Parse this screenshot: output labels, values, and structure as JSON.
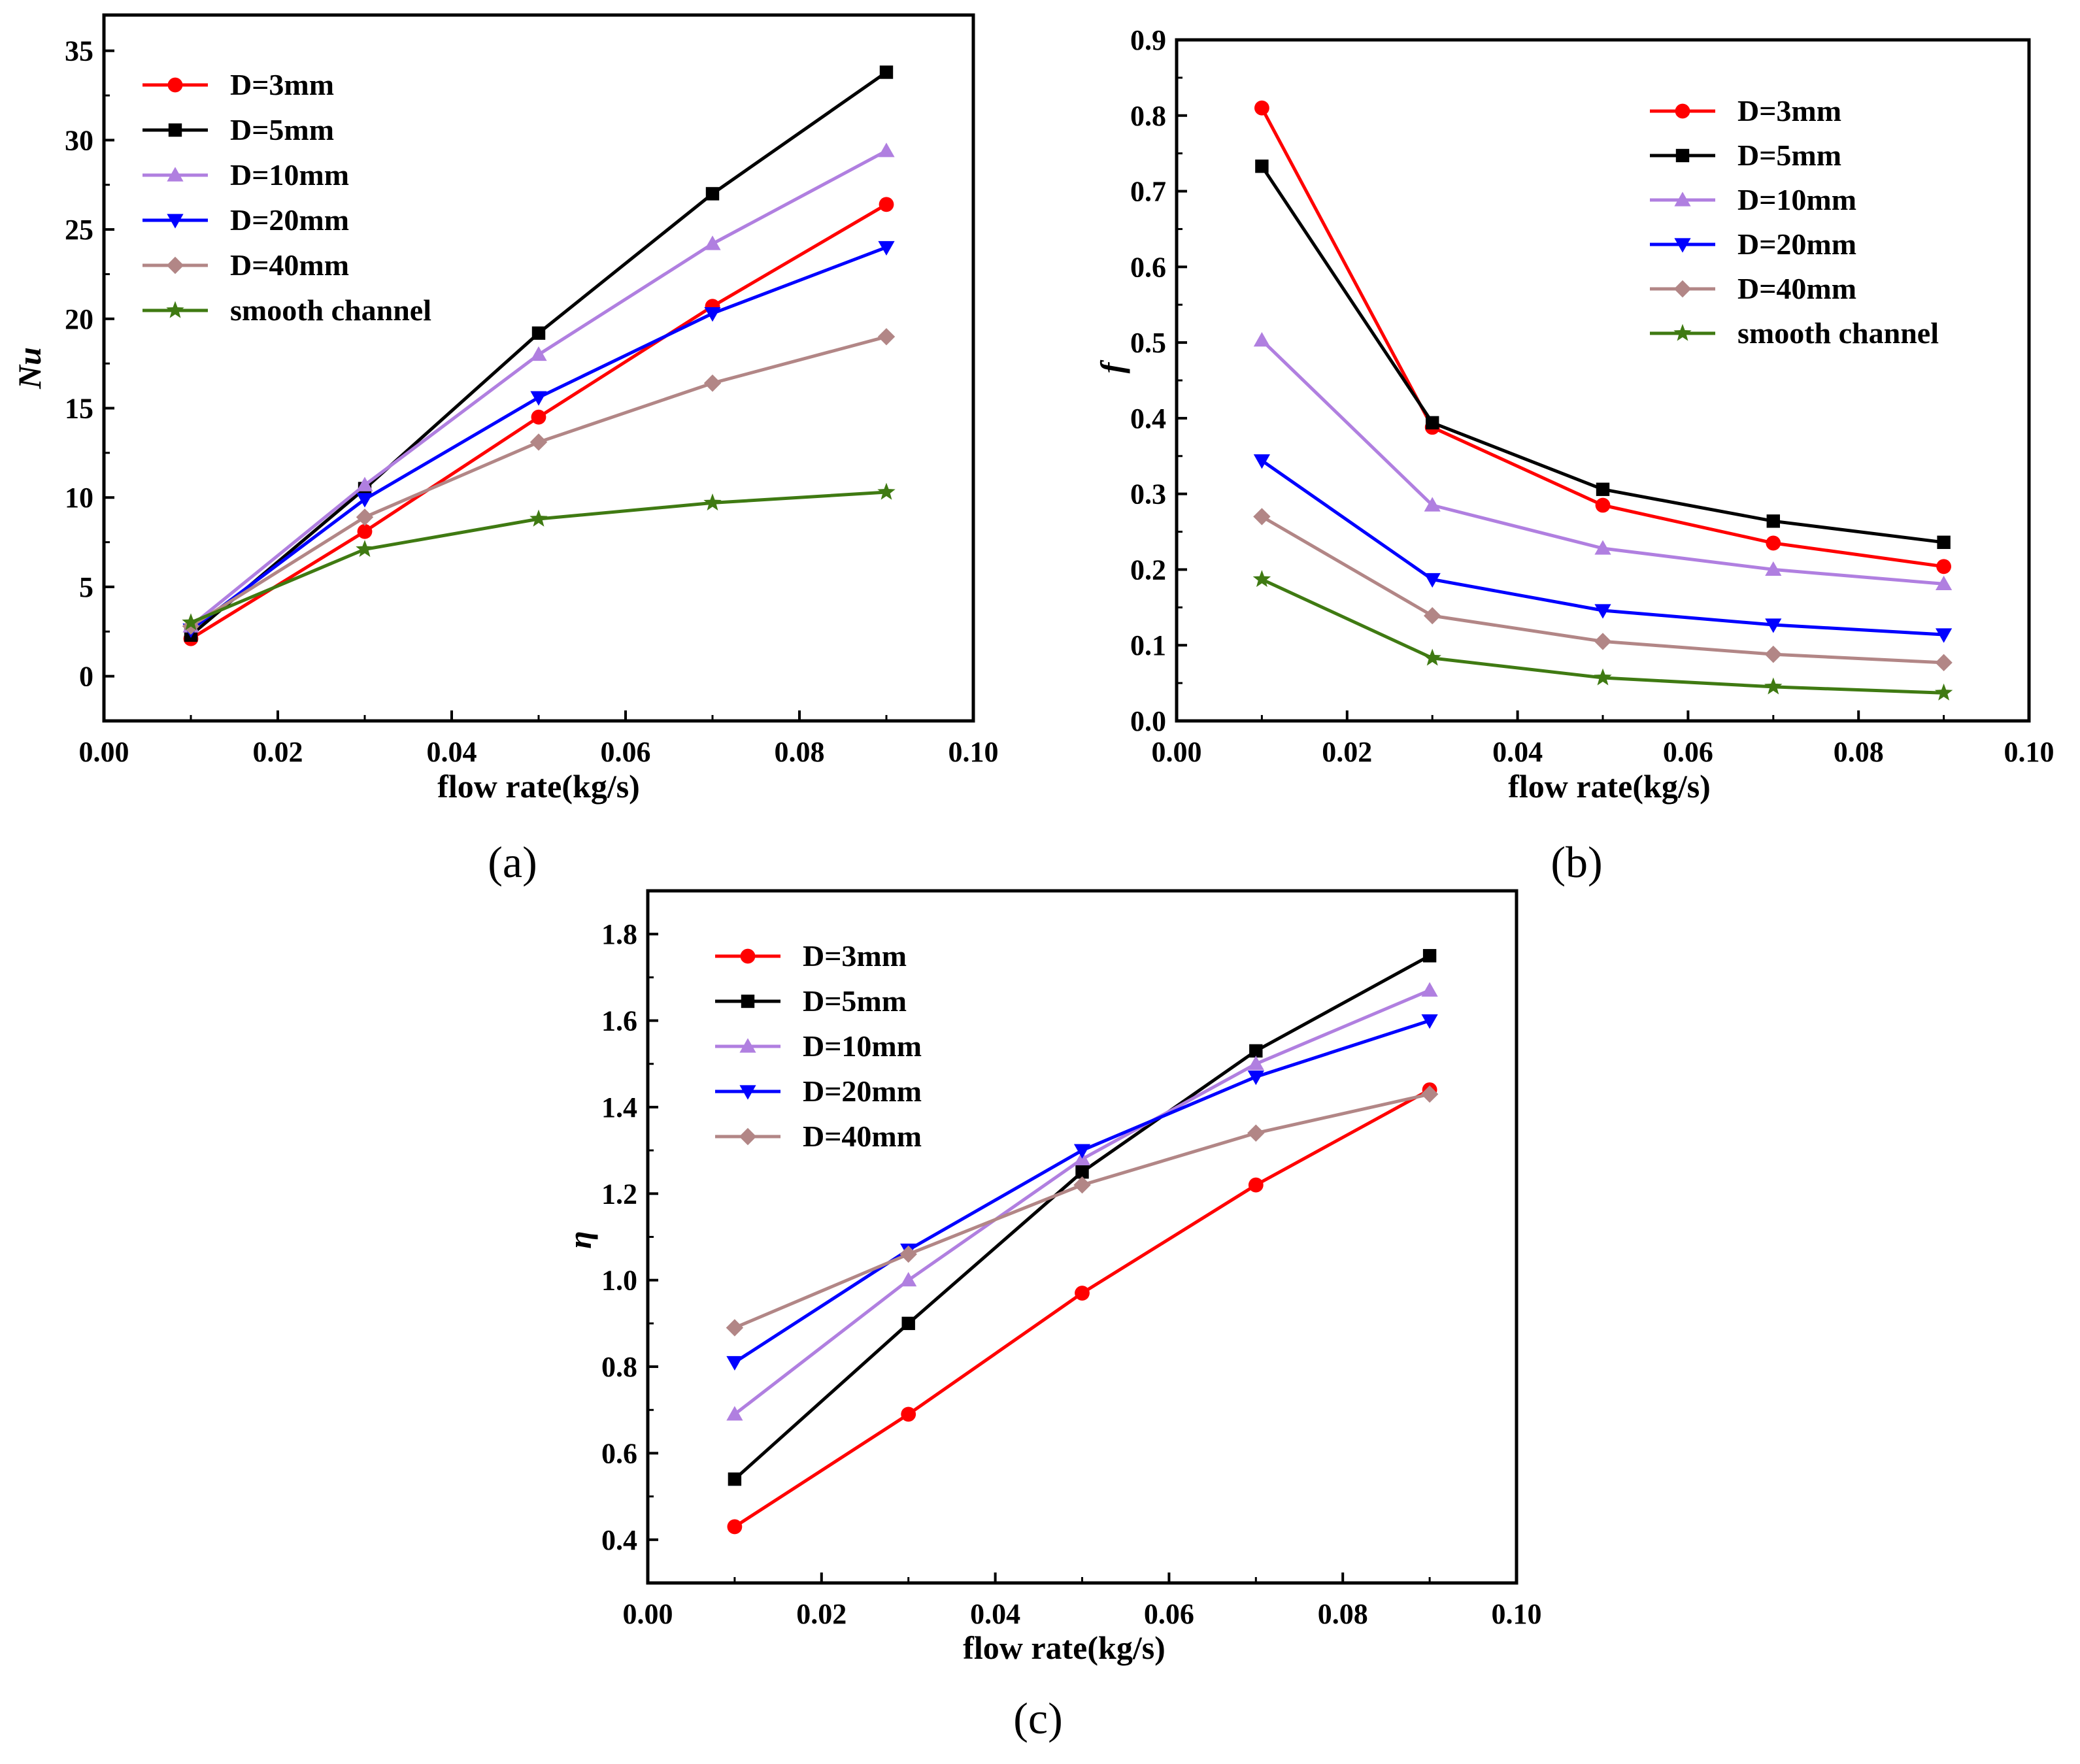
{
  "chart_data": [
    {
      "type": "line",
      "panel_label": "(a)",
      "xlabel": "flow rate(kg/s)",
      "ylabel": "Nu",
      "xlim": [
        0.0,
        0.1
      ],
      "ylim": [
        -2.5,
        37
      ],
      "xticks": [
        0.0,
        0.02,
        0.04,
        0.06,
        0.08,
        0.1
      ],
      "xtick_labels": [
        "0.00",
        "0.02",
        "0.04",
        "0.06",
        "0.08",
        "0.10"
      ],
      "yticks": [
        0,
        5,
        10,
        15,
        20,
        25,
        30,
        35
      ],
      "ytick_labels": [
        "0",
        "5",
        "10",
        "15",
        "20",
        "25",
        "30",
        "35"
      ],
      "legend_position": "top-left",
      "x": [
        0.01,
        0.03,
        0.05,
        0.07,
        0.09
      ],
      "series": [
        {
          "name": "D=3mm",
          "color": "#ff0000",
          "marker": "circle",
          "values": [
            2.1,
            8.1,
            14.5,
            20.7,
            26.4
          ]
        },
        {
          "name": "D=5mm",
          "color": "#000000",
          "marker": "square",
          "values": [
            2.3,
            10.5,
            19.2,
            27.0,
            33.8
          ]
        },
        {
          "name": "D=10mm",
          "color": "#b07fe0",
          "marker": "triangle-up",
          "values": [
            2.8,
            10.7,
            18.0,
            24.2,
            29.4
          ]
        },
        {
          "name": "D=20mm",
          "color": "#0000ff",
          "marker": "triangle-down",
          "values": [
            2.6,
            9.9,
            15.6,
            20.3,
            24.0
          ]
        },
        {
          "name": "D=40mm",
          "color": "#b28686",
          "marker": "diamond",
          "values": [
            2.8,
            8.9,
            13.1,
            16.4,
            19.0
          ]
        },
        {
          "name": "smooth channel",
          "color": "#3f7a12",
          "marker": "star",
          "values": [
            3.0,
            7.1,
            8.8,
            9.7,
            10.3
          ]
        }
      ]
    },
    {
      "type": "line",
      "panel_label": "(b)",
      "xlabel": "flow rate(kg/s)",
      "ylabel": "f",
      "xlim": [
        0.0,
        0.1
      ],
      "ylim": [
        0.0,
        0.9
      ],
      "xticks": [
        0.0,
        0.02,
        0.04,
        0.06,
        0.08,
        0.1
      ],
      "xtick_labels": [
        "0.00",
        "0.02",
        "0.04",
        "0.06",
        "0.08",
        "0.10"
      ],
      "yticks": [
        0.0,
        0.1,
        0.2,
        0.3,
        0.4,
        0.5,
        0.6,
        0.7,
        0.8,
        0.9
      ],
      "ytick_labels": [
        "0.0",
        "0.1",
        "0.2",
        "0.3",
        "0.4",
        "0.5",
        "0.6",
        "0.7",
        "0.8",
        "0.9"
      ],
      "legend_position": "top-right",
      "x": [
        0.01,
        0.03,
        0.05,
        0.07,
        0.09
      ],
      "series": [
        {
          "name": "D=3mm",
          "color": "#ff0000",
          "marker": "circle",
          "values": [
            0.81,
            0.388,
            0.285,
            0.235,
            0.204
          ]
        },
        {
          "name": "D=5mm",
          "color": "#000000",
          "marker": "square",
          "values": [
            0.733,
            0.394,
            0.306,
            0.264,
            0.236
          ]
        },
        {
          "name": "D=10mm",
          "color": "#b07fe0",
          "marker": "triangle-up",
          "values": [
            0.503,
            0.285,
            0.228,
            0.2,
            0.181
          ]
        },
        {
          "name": "D=20mm",
          "color": "#0000ff",
          "marker": "triangle-down",
          "values": [
            0.344,
            0.187,
            0.146,
            0.127,
            0.114
          ]
        },
        {
          "name": "D=40mm",
          "color": "#b28686",
          "marker": "diamond",
          "values": [
            0.27,
            0.139,
            0.105,
            0.088,
            0.077
          ]
        },
        {
          "name": "smooth channel",
          "color": "#3f7a12",
          "marker": "star",
          "values": [
            0.187,
            0.083,
            0.057,
            0.045,
            0.037
          ]
        }
      ]
    },
    {
      "type": "line",
      "panel_label": "(c)",
      "xlabel": "flow rate(kg/s)",
      "ylabel": "η",
      "xlim": [
        0.0,
        0.1
      ],
      "ylim": [
        0.3,
        1.9
      ],
      "xticks": [
        0.0,
        0.02,
        0.04,
        0.06,
        0.08,
        0.1
      ],
      "xtick_labels": [
        "0.00",
        "0.02",
        "0.04",
        "0.06",
        "0.08",
        "0.10"
      ],
      "yticks": [
        0.4,
        0.6,
        0.8,
        1.0,
        1.2,
        1.4,
        1.6,
        1.8
      ],
      "ytick_labels": [
        "0.4",
        "0.6",
        "0.8",
        "1.0",
        "1.2",
        "1.4",
        "1.6",
        "1.8"
      ],
      "legend_position": "top-left",
      "x": [
        0.01,
        0.03,
        0.05,
        0.07,
        0.09
      ],
      "series": [
        {
          "name": "D=3mm",
          "color": "#ff0000",
          "marker": "circle",
          "values": [
            0.43,
            0.69,
            0.97,
            1.22,
            1.44
          ]
        },
        {
          "name": "D=5mm",
          "color": "#000000",
          "marker": "square",
          "values": [
            0.54,
            0.9,
            1.25,
            1.53,
            1.75
          ]
        },
        {
          "name": "D=10mm",
          "color": "#b07fe0",
          "marker": "triangle-up",
          "values": [
            0.69,
            1.0,
            1.28,
            1.5,
            1.67
          ]
        },
        {
          "name": "D=20mm",
          "color": "#0000ff",
          "marker": "triangle-down",
          "values": [
            0.81,
            1.07,
            1.3,
            1.47,
            1.6
          ]
        },
        {
          "name": "D=40mm",
          "color": "#b28686",
          "marker": "diamond",
          "values": [
            0.89,
            1.06,
            1.22,
            1.34,
            1.43
          ]
        }
      ]
    }
  ]
}
